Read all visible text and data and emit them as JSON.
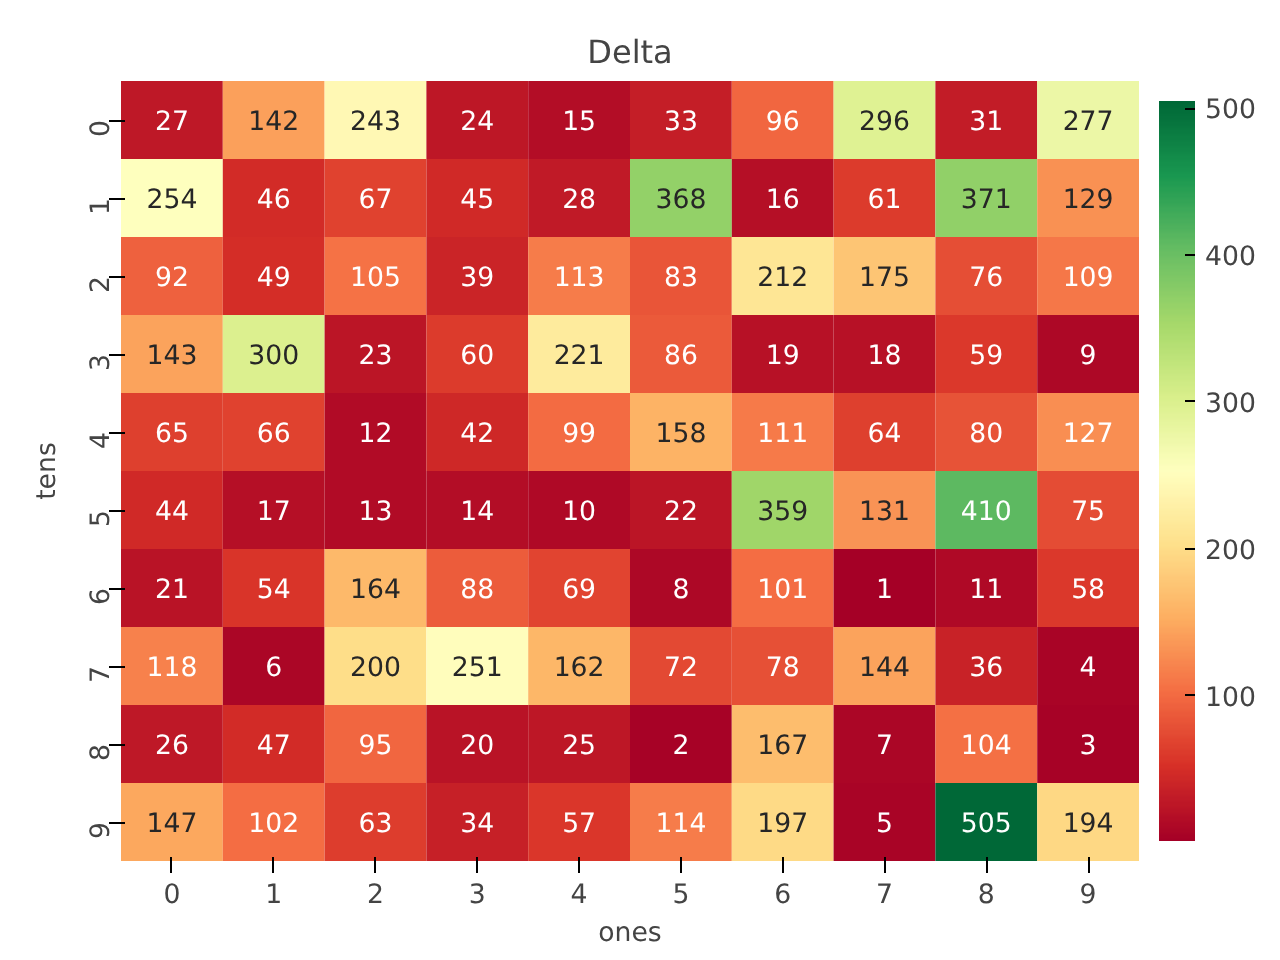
{
  "chart_data": {
    "type": "heatmap",
    "title": "Delta",
    "xlabel": "ones",
    "ylabel": "tens",
    "categories": [
      "0",
      "1",
      "2",
      "3",
      "4",
      "5",
      "6",
      "7",
      "8",
      "9"
    ],
    "y_categories": [
      "0",
      "1",
      "2",
      "3",
      "4",
      "5",
      "6",
      "7",
      "8",
      "9"
    ],
    "cells": [
      [
        27,
        142,
        243,
        24,
        15,
        33,
        96,
        296,
        31,
        277
      ],
      [
        254,
        46,
        67,
        45,
        28,
        368,
        16,
        61,
        371,
        129
      ],
      [
        92,
        49,
        105,
        39,
        113,
        83,
        212,
        175,
        76,
        109
      ],
      [
        143,
        300,
        23,
        60,
        221,
        86,
        19,
        18,
        59,
        9
      ],
      [
        65,
        66,
        12,
        42,
        99,
        158,
        111,
        64,
        80,
        127
      ],
      [
        44,
        17,
        13,
        14,
        10,
        22,
        359,
        131,
        410,
        75
      ],
      [
        21,
        54,
        164,
        88,
        69,
        8,
        101,
        1,
        11,
        58
      ],
      [
        118,
        6,
        200,
        251,
        162,
        72,
        78,
        144,
        36,
        4
      ],
      [
        26,
        47,
        95,
        20,
        25,
        2,
        167,
        7,
        104,
        3
      ],
      [
        147,
        102,
        63,
        34,
        57,
        114,
        197,
        5,
        505,
        194
      ]
    ],
    "data_labels": true,
    "clim": [
      1,
      505
    ],
    "cticks": [
      100,
      200,
      300,
      400,
      500
    ]
  }
}
